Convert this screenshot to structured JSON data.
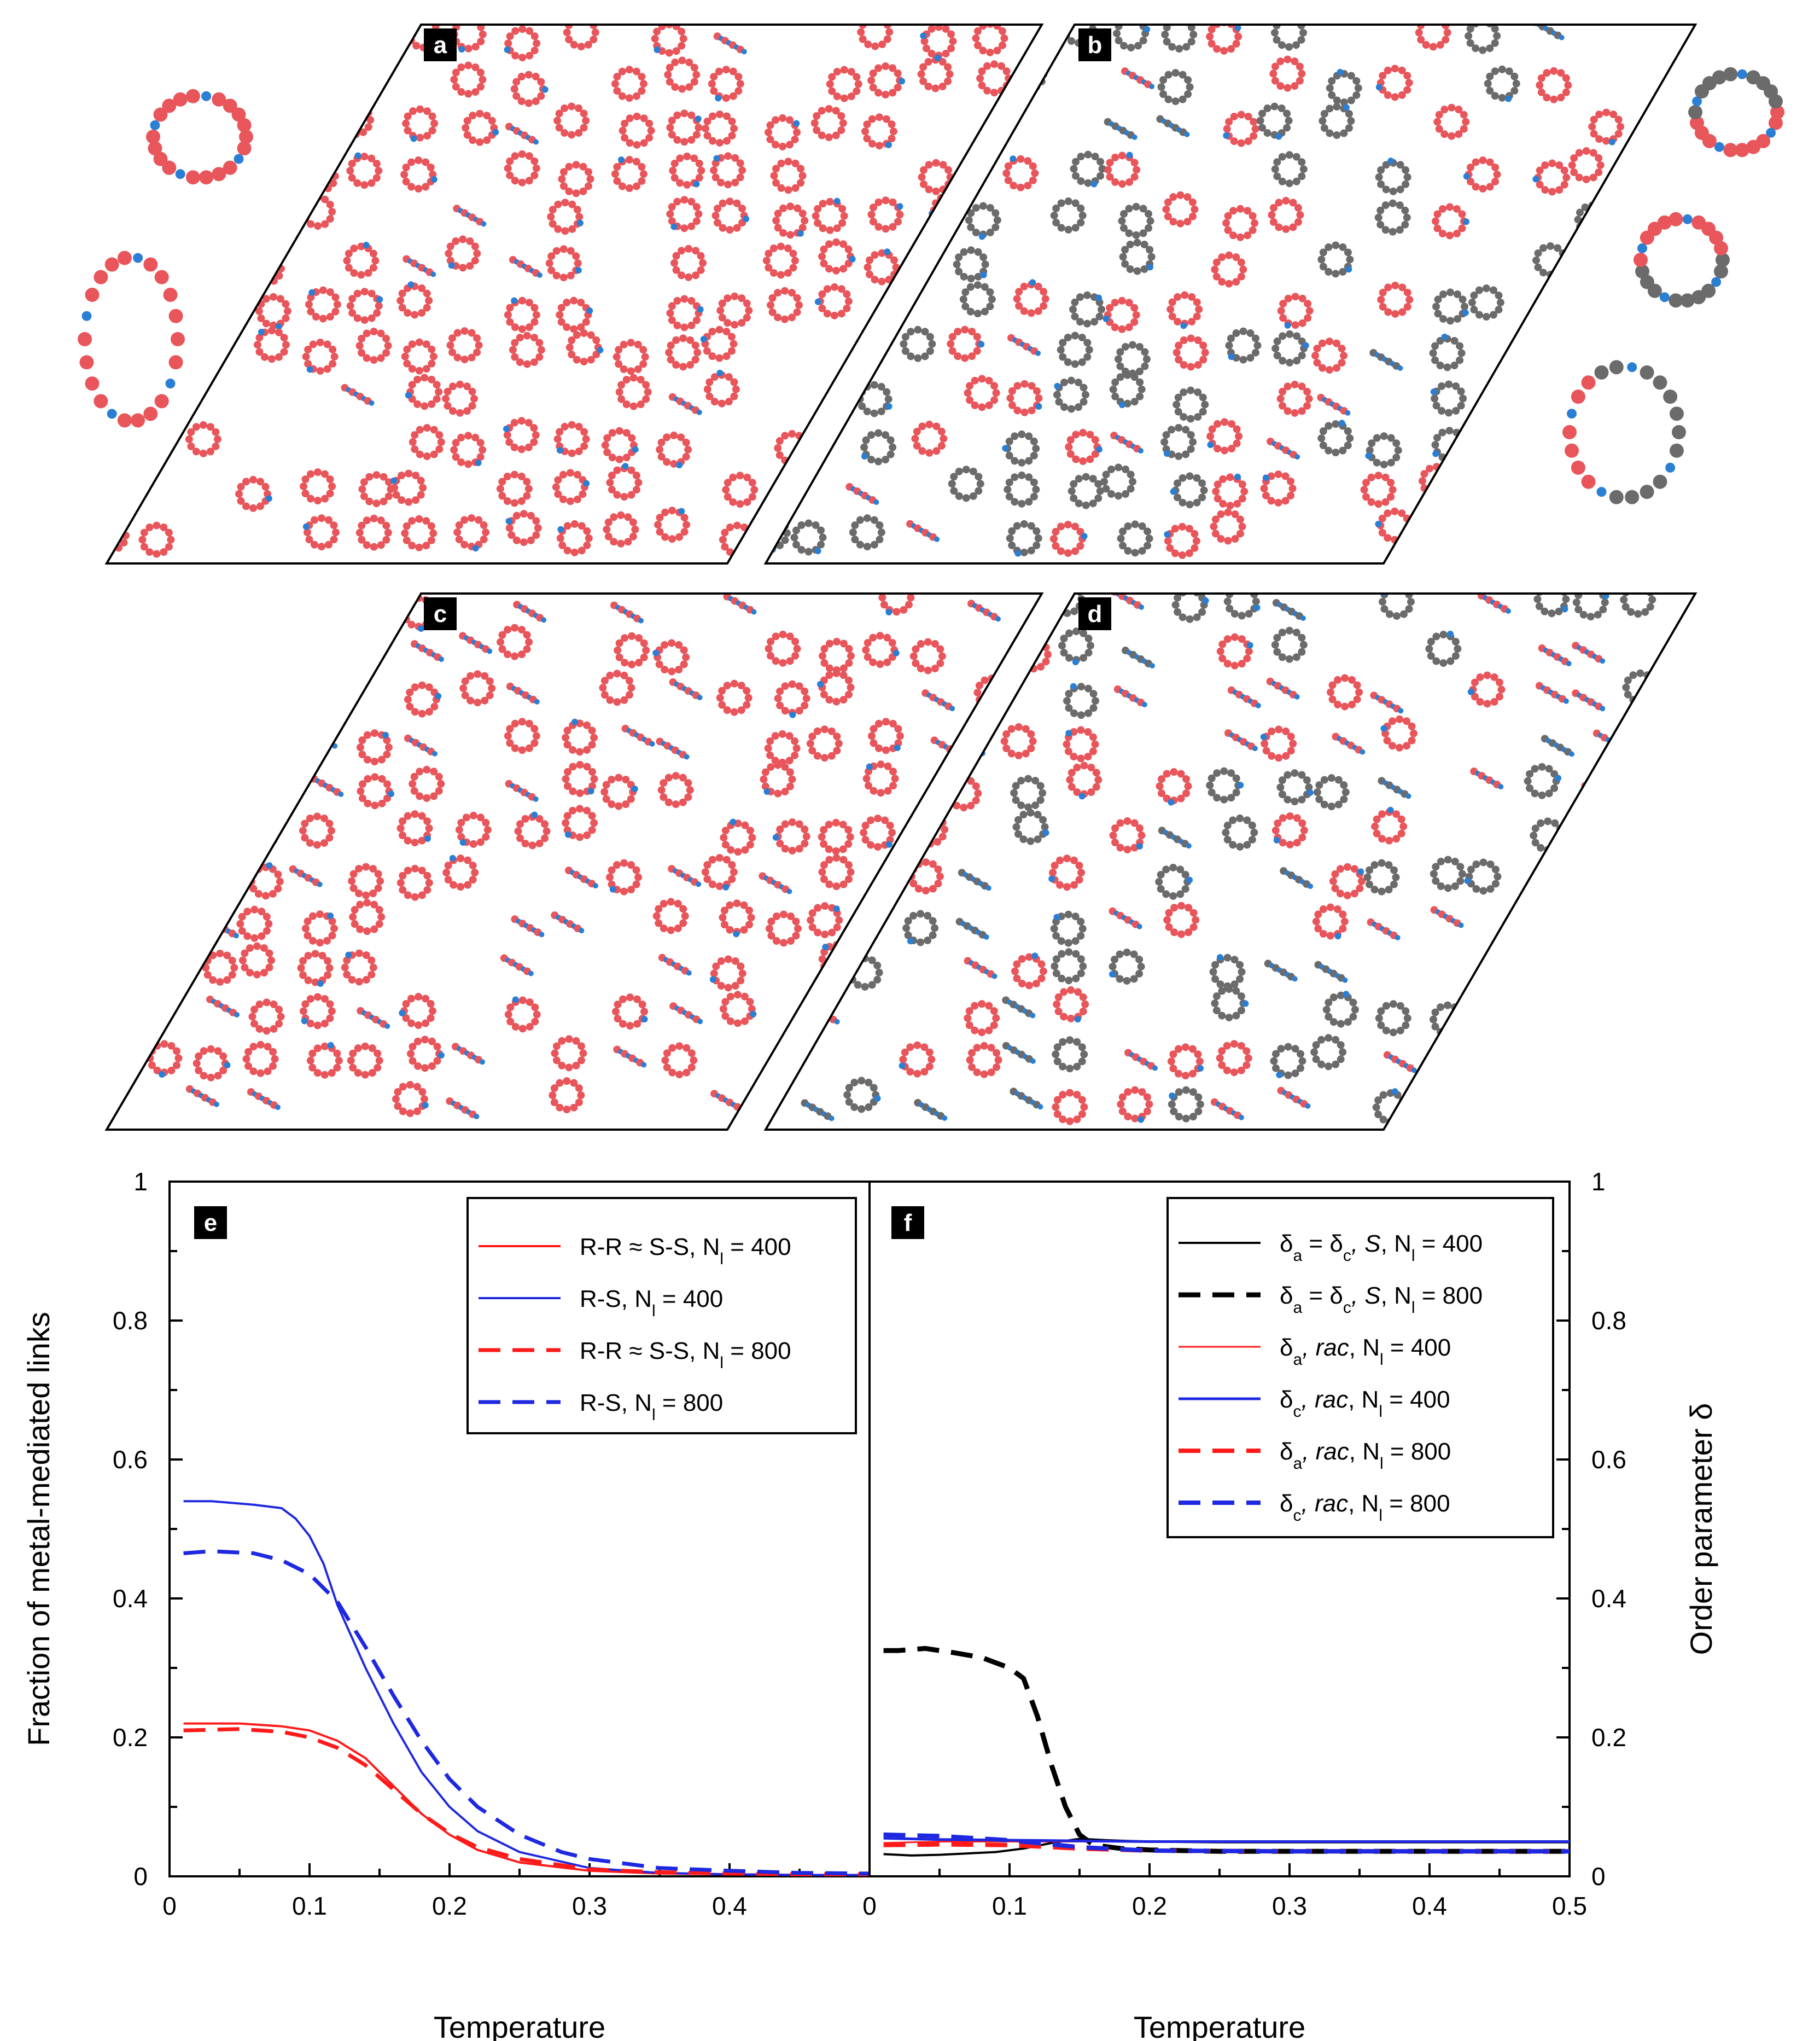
{
  "panels": {
    "a": "a",
    "b": "b",
    "c": "c",
    "d": "d"
  },
  "colors": {
    "red": "#e8555a",
    "blue": "#2a7fd4",
    "grey": "#6b6b6b",
    "line_red": "#ff1a1a",
    "line_blue": "#1e28e0",
    "black": "#000000"
  },
  "chart_data": [
    {
      "type": "line",
      "panel_label": "e",
      "xlabel": "Temperature",
      "ylabel": "Fraction of metal-mediated links",
      "xlim": [
        0,
        0.5
      ],
      "ylim": [
        0,
        1
      ],
      "x_ticks": [
        "0",
        "0.1",
        "0.2",
        "0.3",
        "0.4",
        ""
      ],
      "y_ticks": [
        "0",
        "0.2",
        "0.4",
        "0.6",
        "0.8",
        "1"
      ],
      "legend": [
        {
          "main": "R-R ≈ S-S, N",
          "sub": "l",
          "tail": " = 400",
          "series": 0
        },
        {
          "main": "R-S, N",
          "sub": "l",
          "tail": " = 400",
          "series": 1
        },
        {
          "main": "R-R ≈ S-S, N",
          "sub": "l",
          "tail": " = 800",
          "series": 2
        },
        {
          "main": "R-S, N",
          "sub": "l",
          "tail": " = 800",
          "series": 3
        }
      ],
      "series": [
        {
          "name": "R-R ≈ S-S, Nl = 400",
          "color": "red",
          "dash": "solid",
          "x": [
            0.01,
            0.05,
            0.08,
            0.1,
            0.12,
            0.14,
            0.16,
            0.18,
            0.2,
            0.22,
            0.25,
            0.3,
            0.35,
            0.4,
            0.45,
            0.5
          ],
          "y": [
            0.22,
            0.22,
            0.216,
            0.21,
            0.195,
            0.17,
            0.13,
            0.09,
            0.06,
            0.038,
            0.02,
            0.008,
            0.004,
            0.003,
            0.002,
            0.002
          ]
        },
        {
          "name": "R-S, Nl = 400",
          "color": "blue",
          "dash": "solid",
          "x": [
            0.01,
            0.03,
            0.06,
            0.08,
            0.09,
            0.1,
            0.11,
            0.12,
            0.14,
            0.16,
            0.18,
            0.2,
            0.22,
            0.25,
            0.3,
            0.35,
            0.4,
            0.45,
            0.5
          ],
          "y": [
            0.54,
            0.54,
            0.535,
            0.53,
            0.515,
            0.49,
            0.45,
            0.39,
            0.3,
            0.22,
            0.15,
            0.1,
            0.065,
            0.035,
            0.012,
            0.005,
            0.003,
            0.002,
            0.002
          ]
        },
        {
          "name": "R-R ≈ S-S, Nl = 800",
          "color": "red",
          "dash": "dashed",
          "x": [
            0.01,
            0.05,
            0.08,
            0.1,
            0.12,
            0.14,
            0.16,
            0.18,
            0.2,
            0.22,
            0.25,
            0.3,
            0.35,
            0.4,
            0.45,
            0.5
          ],
          "y": [
            0.21,
            0.212,
            0.208,
            0.2,
            0.185,
            0.16,
            0.125,
            0.09,
            0.062,
            0.042,
            0.025,
            0.01,
            0.006,
            0.004,
            0.003,
            0.003
          ]
        },
        {
          "name": "R-S, Nl = 800",
          "color": "blue",
          "dash": "dashed",
          "x": [
            0.01,
            0.03,
            0.06,
            0.08,
            0.1,
            0.12,
            0.14,
            0.16,
            0.18,
            0.2,
            0.22,
            0.25,
            0.28,
            0.3,
            0.35,
            0.4,
            0.45,
            0.5
          ],
          "y": [
            0.465,
            0.468,
            0.465,
            0.455,
            0.435,
            0.395,
            0.33,
            0.26,
            0.195,
            0.14,
            0.1,
            0.06,
            0.035,
            0.025,
            0.012,
            0.008,
            0.005,
            0.004
          ]
        }
      ]
    },
    {
      "type": "line",
      "panel_label": "f",
      "xlabel": "Temperature",
      "ylabel": "Order parameter δ",
      "xlim": [
        0,
        0.5
      ],
      "ylim": [
        0,
        1
      ],
      "x_ticks": [
        "0",
        "0.1",
        "0.2",
        "0.3",
        "0.4",
        "0.5"
      ],
      "y_ticks": [
        "0",
        "0.2",
        "0.4",
        "0.6",
        "0.8",
        "1"
      ],
      "legend": [
        {
          "main": "δ",
          "sub": "a",
          "mid": " = δ",
          "sub2": "c",
          "it": ", S",
          "main2": ", N",
          "sub3": "l",
          "tail": " = 400",
          "series": 0
        },
        {
          "main": "δ",
          "sub": "a",
          "mid": " = δ",
          "sub2": "c",
          "it": ", S",
          "main2": ", N",
          "sub3": "l",
          "tail": " = 800",
          "series": 1
        },
        {
          "main": "δ",
          "sub": "a",
          "it": ", rac",
          "main2": ", N",
          "sub3": "l",
          "tail": " = 400",
          "series": 2
        },
        {
          "main": "δ",
          "sub": "c",
          "it": ", rac",
          "main2": ", N",
          "sub3": "l",
          "tail": " = 400",
          "series": 3
        },
        {
          "main": "δ",
          "sub": "a",
          "it": ", rac",
          "main2": ", N",
          "sub3": "l",
          "tail": " = 800",
          "series": 4
        },
        {
          "main": "δ",
          "sub": "c",
          "it": ", rac",
          "main2": ", N",
          "sub3": "l",
          "tail": " = 800",
          "series": 5
        }
      ],
      "series": [
        {
          "name": "δa = δc, S, Nl = 400",
          "color": "black",
          "dash": "solid",
          "width": 4,
          "x": [
            0.01,
            0.03,
            0.05,
            0.07,
            0.09,
            0.11,
            0.13,
            0.15,
            0.17,
            0.2,
            0.25,
            0.3,
            0.4,
            0.5
          ],
          "y": [
            0.032,
            0.03,
            0.031,
            0.033,
            0.035,
            0.04,
            0.048,
            0.054,
            0.052,
            0.05,
            0.049,
            0.049,
            0.049,
            0.049
          ]
        },
        {
          "name": "δa = δc, S, Nl = 800",
          "color": "black",
          "dash": "dashed",
          "width": 9,
          "x": [
            0.01,
            0.02,
            0.04,
            0.06,
            0.08,
            0.1,
            0.11,
            0.12,
            0.13,
            0.14,
            0.15,
            0.16,
            0.18,
            0.2,
            0.25,
            0.3,
            0.4,
            0.5
          ],
          "y": [
            0.325,
            0.325,
            0.328,
            0.322,
            0.315,
            0.3,
            0.285,
            0.23,
            0.16,
            0.1,
            0.06,
            0.045,
            0.04,
            0.038,
            0.036,
            0.036,
            0.036,
            0.036
          ]
        },
        {
          "name": "δa, rac, Nl = 400",
          "color": "red",
          "dash": "solid",
          "width": 3,
          "x": [
            0.01,
            0.05,
            0.1,
            0.15,
            0.2,
            0.3,
            0.4,
            0.5
          ],
          "y": [
            0.048,
            0.05,
            0.05,
            0.05,
            0.05,
            0.05,
            0.05,
            0.05
          ]
        },
        {
          "name": "δc, rac, Nl = 400",
          "color": "blue",
          "dash": "solid",
          "width": 5,
          "x": [
            0.01,
            0.05,
            0.1,
            0.15,
            0.2,
            0.3,
            0.4,
            0.5
          ],
          "y": [
            0.055,
            0.053,
            0.052,
            0.051,
            0.05,
            0.05,
            0.05,
            0.05
          ]
        },
        {
          "name": "δa, rac, Nl = 800",
          "color": "red",
          "dash": "dashed",
          "width": 8,
          "x": [
            0.01,
            0.05,
            0.1,
            0.15,
            0.2,
            0.3,
            0.4,
            0.5
          ],
          "y": [
            0.045,
            0.046,
            0.045,
            0.04,
            0.037,
            0.036,
            0.036,
            0.036
          ]
        },
        {
          "name": "δc, rac, Nl = 800",
          "color": "blue",
          "dash": "dashed",
          "width": 8,
          "x": [
            0.01,
            0.05,
            0.1,
            0.15,
            0.2,
            0.3,
            0.4,
            0.5
          ],
          "y": [
            0.06,
            0.058,
            0.052,
            0.042,
            0.037,
            0.036,
            0.036,
            0.036
          ]
        }
      ]
    }
  ]
}
